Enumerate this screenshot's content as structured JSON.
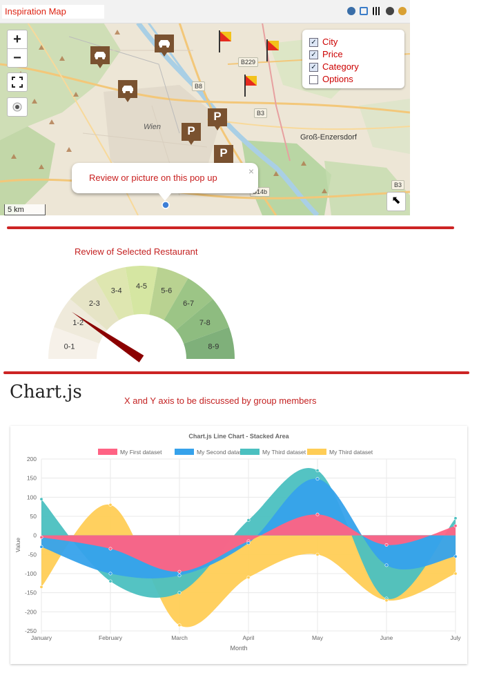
{
  "map": {
    "title": "Inspiration Map",
    "zoom_in": "+",
    "zoom_out": "−",
    "layers": [
      {
        "label": "City",
        "checked": true
      },
      {
        "label": "Price",
        "checked": true
      },
      {
        "label": "Category",
        "checked": true
      },
      {
        "label": "Options",
        "checked": false
      }
    ],
    "popup": {
      "text": "Review or picture on this pop up",
      "close": "×"
    },
    "scale": "5 km",
    "road_labels": [
      "B229",
      "B8",
      "B3",
      "B3",
      "S14b"
    ],
    "place_labels": [
      "Wien",
      "Groß-Enzersdorf"
    ],
    "marker_labels": [
      "P"
    ],
    "colors": {
      "marker": "#7a5230",
      "flag_red": "#e52a1f",
      "flag_yellow": "#f3c21a",
      "text_red": "#cc2020",
      "water": "#a9cfe5",
      "park": "#c8ddb4",
      "forest": "#add19e"
    }
  },
  "gauge": {
    "title": "Review  of Selected Restaurant",
    "segments": [
      "0-1",
      "1-2",
      "2-3",
      "3-4",
      "4-5",
      "5-6",
      "6-7",
      "7-8",
      "8-9"
    ],
    "colors": [
      "#f6f1e9",
      "#efeadb",
      "#e6e4c6",
      "#dee6b0",
      "#d5e6a2",
      "#b9d291",
      "#9cc586",
      "#8ebc80",
      "#7fb07a"
    ],
    "value": 1.7,
    "max": 9,
    "needle_color": "#8b0000"
  },
  "chartjs": {
    "heading": "Chart.js",
    "note": "X and Y axis to be discussed by group members"
  },
  "chart_data": {
    "type": "area",
    "title": "Chart.js Line Chart - Stacked Area",
    "xlabel": "Month",
    "ylabel": "Value",
    "categories": [
      "January",
      "February",
      "March",
      "April",
      "May",
      "June",
      "July"
    ],
    "ylim": [
      -250,
      200
    ],
    "yticks": [
      -250,
      -200,
      -150,
      -100,
      -50,
      0,
      50,
      100,
      150,
      200
    ],
    "grid": true,
    "legend_position": "top",
    "series": [
      {
        "name": "My First dataset",
        "color": "#ff6384",
        "values": [
          -5,
          -35,
          -95,
          -15,
          55,
          -25,
          25
        ]
      },
      {
        "name": "My Second dataset",
        "color": "#36a2eb",
        "values": [
          -30,
          -100,
          -105,
          -20,
          148,
          -78,
          -55
        ]
      },
      {
        "name": "My Third dataset",
        "color": "#4bc0c0",
        "values": [
          95,
          -120,
          -150,
          40,
          170,
          -165,
          45
        ]
      },
      {
        "name": "My Third dataset",
        "color": "#ffcd56",
        "values": [
          -135,
          80,
          -235,
          -110,
          -50,
          -170,
          -100
        ]
      }
    ]
  }
}
